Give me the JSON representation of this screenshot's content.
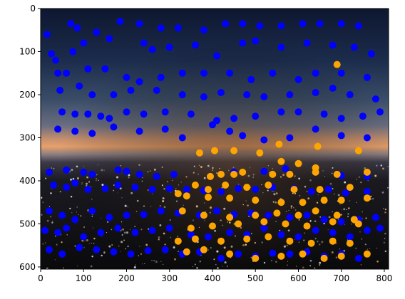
{
  "chart_data": {
    "type": "scatter",
    "background": "night city skyline photograph with sunset sky",
    "xlim": [
      0,
      810
    ],
    "ylim": [
      605,
      0
    ],
    "y_inverted": true,
    "grid": false,
    "x_ticks": [
      0,
      100,
      200,
      300,
      400,
      500,
      600,
      700,
      800
    ],
    "y_ticks": [
      0,
      100,
      200,
      300,
      400,
      500,
      600
    ],
    "series": [
      {
        "color": "#0000ff",
        "points": [
          [
            15,
            60
          ],
          [
            70,
            35
          ],
          [
            85,
            45
          ],
          [
            130,
            55
          ],
          [
            185,
            30
          ],
          [
            230,
            35
          ],
          [
            280,
            45
          ],
          [
            320,
            45
          ],
          [
            380,
            50
          ],
          [
            430,
            35
          ],
          [
            470,
            35
          ],
          [
            510,
            40
          ],
          [
            560,
            40
          ],
          [
            610,
            35
          ],
          [
            650,
            35
          ],
          [
            700,
            35
          ],
          [
            740,
            40
          ],
          [
            25,
            105
          ],
          [
            35,
            120
          ],
          [
            75,
            100
          ],
          [
            100,
            80
          ],
          [
            160,
            70
          ],
          [
            240,
            80
          ],
          [
            260,
            95
          ],
          [
            300,
            90
          ],
          [
            360,
            85
          ],
          [
            410,
            110
          ],
          [
            470,
            80
          ],
          [
            500,
            75
          ],
          [
            560,
            90
          ],
          [
            620,
            80
          ],
          [
            680,
            85
          ],
          [
            730,
            90
          ],
          [
            770,
            105
          ],
          [
            40,
            150
          ],
          [
            60,
            150
          ],
          [
            110,
            140
          ],
          [
            150,
            140
          ],
          [
            200,
            160
          ],
          [
            230,
            170
          ],
          [
            280,
            160
          ],
          [
            330,
            150
          ],
          [
            380,
            150
          ],
          [
            440,
            150
          ],
          [
            490,
            165
          ],
          [
            540,
            150
          ],
          [
            600,
            165
          ],
          [
            640,
            150
          ],
          [
            700,
            150
          ],
          [
            760,
            160
          ],
          [
            45,
            190
          ],
          [
            90,
            180
          ],
          [
            120,
            200
          ],
          [
            170,
            200
          ],
          [
            210,
            190
          ],
          [
            270,
            190
          ],
          [
            330,
            200
          ],
          [
            380,
            205
          ],
          [
            420,
            195
          ],
          [
            480,
            200
          ],
          [
            520,
            205
          ],
          [
            580,
            200
          ],
          [
            640,
            195
          ],
          [
            680,
            185
          ],
          [
            720,
            200
          ],
          [
            780,
            210
          ],
          [
            50,
            240
          ],
          [
            80,
            245
          ],
          [
            110,
            245
          ],
          [
            140,
            250
          ],
          [
            160,
            255
          ],
          [
            200,
            240
          ],
          [
            240,
            245
          ],
          [
            290,
            240
          ],
          [
            350,
            245
          ],
          [
            410,
            260
          ],
          [
            450,
            255
          ],
          [
            500,
            250
          ],
          [
            560,
            240
          ],
          [
            600,
            240
          ],
          [
            660,
            245
          ],
          [
            700,
            255
          ],
          [
            750,
            250
          ],
          [
            790,
            240
          ],
          [
            40,
            280
          ],
          [
            80,
            285
          ],
          [
            120,
            290
          ],
          [
            170,
            275
          ],
          [
            230,
            285
          ],
          [
            290,
            280
          ],
          [
            330,
            300
          ],
          [
            400,
            270
          ],
          [
            440,
            285
          ],
          [
            470,
            295
          ],
          [
            520,
            305
          ],
          [
            580,
            300
          ],
          [
            640,
            280
          ],
          [
            700,
            295
          ],
          [
            760,
            300
          ],
          [
            20,
            380
          ],
          [
            60,
            375
          ],
          [
            100,
            380
          ],
          [
            120,
            385
          ],
          [
            180,
            375
          ],
          [
            200,
            378
          ],
          [
            230,
            385
          ],
          [
            270,
            390
          ],
          [
            310,
            385
          ],
          [
            450,
            380
          ],
          [
            520,
            378
          ],
          [
            570,
            372
          ],
          [
            640,
            380
          ],
          [
            700,
            388
          ],
          [
            760,
            390
          ],
          [
            30,
            410
          ],
          [
            60,
            415
          ],
          [
            80,
            405
          ],
          [
            110,
            420
          ],
          [
            150,
            418
          ],
          [
            180,
            410
          ],
          [
            220,
            415
          ],
          [
            260,
            420
          ],
          [
            300,
            418
          ],
          [
            340,
            420
          ],
          [
            380,
            422
          ],
          [
            420,
            425
          ],
          [
            460,
            418
          ],
          [
            500,
            420
          ],
          [
            540,
            415
          ],
          [
            590,
            418
          ],
          [
            630,
            425
          ],
          [
            670,
            420
          ],
          [
            710,
            428
          ],
          [
            760,
            425
          ],
          [
            20,
            470
          ],
          [
            50,
            480
          ],
          [
            80,
            490
          ],
          [
            120,
            470
          ],
          [
            160,
            485
          ],
          [
            200,
            480
          ],
          [
            240,
            478
          ],
          [
            280,
            470
          ],
          [
            320,
            475
          ],
          [
            370,
            480
          ],
          [
            410,
            470
          ],
          [
            450,
            478
          ],
          [
            490,
            475
          ],
          [
            530,
            480
          ],
          [
            580,
            485
          ],
          [
            620,
            480
          ],
          [
            660,
            490
          ],
          [
            700,
            495
          ],
          [
            740,
            490
          ],
          [
            780,
            485
          ],
          [
            10,
            515
          ],
          [
            40,
            520
          ],
          [
            60,
            510
          ],
          [
            100,
            530
          ],
          [
            140,
            520
          ],
          [
            180,
            510
          ],
          [
            220,
            520
          ],
          [
            260,
            515
          ],
          [
            300,
            510
          ],
          [
            350,
            525
          ],
          [
            390,
            530
          ],
          [
            440,
            520
          ],
          [
            480,
            525
          ],
          [
            520,
            510
          ],
          [
            560,
            525
          ],
          [
            600,
            530
          ],
          [
            640,
            515
          ],
          [
            680,
            520
          ],
          [
            720,
            530
          ],
          [
            760,
            515
          ],
          [
            790,
            510
          ],
          [
            20,
            560
          ],
          [
            50,
            570
          ],
          [
            90,
            555
          ],
          [
            130,
            560
          ],
          [
            170,
            565
          ],
          [
            210,
            570
          ],
          [
            250,
            562
          ],
          [
            290,
            560
          ],
          [
            330,
            570
          ],
          [
            370,
            565
          ],
          [
            420,
            580
          ],
          [
            460,
            570
          ],
          [
            500,
            575
          ],
          [
            540,
            568
          ],
          [
            580,
            570
          ],
          [
            620,
            565
          ],
          [
            660,
            575
          ],
          [
            700,
            570
          ],
          [
            740,
            580
          ]
        ]
      },
      {
        "color": "#ffa500",
        "points": [
          [
            690,
            130
          ],
          [
            370,
            335
          ],
          [
            405,
            330
          ],
          [
            450,
            330
          ],
          [
            510,
            335
          ],
          [
            555,
            315
          ],
          [
            645,
            320
          ],
          [
            740,
            330
          ],
          [
            560,
            355
          ],
          [
            600,
            360
          ],
          [
            640,
            370
          ],
          [
            395,
            390
          ],
          [
            420,
            385
          ],
          [
            450,
            385
          ],
          [
            470,
            380
          ],
          [
            540,
            385
          ],
          [
            580,
            385
          ],
          [
            640,
            380
          ],
          [
            690,
            385
          ],
          [
            760,
            380
          ],
          [
            360,
            410
          ],
          [
            390,
            420
          ],
          [
            430,
            410
          ],
          [
            480,
            415
          ],
          [
            530,
            410
          ],
          [
            590,
            420
          ],
          [
            650,
            420
          ],
          [
            720,
            415
          ],
          [
            320,
            430
          ],
          [
            340,
            435
          ],
          [
            390,
            438
          ],
          [
            440,
            440
          ],
          [
            500,
            445
          ],
          [
            560,
            450
          ],
          [
            610,
            450
          ],
          [
            660,
            445
          ],
          [
            700,
            445
          ],
          [
            760,
            440
          ],
          [
            330,
            470
          ],
          [
            380,
            480
          ],
          [
            440,
            485
          ],
          [
            500,
            480
          ],
          [
            550,
            475
          ],
          [
            600,
            480
          ],
          [
            640,
            470
          ],
          [
            690,
            480
          ],
          [
            730,
            490
          ],
          [
            350,
            510
          ],
          [
            400,
            505
          ],
          [
            460,
            500
          ],
          [
            520,
            495
          ],
          [
            570,
            500
          ],
          [
            620,
            505
          ],
          [
            680,
            495
          ],
          [
            740,
            500
          ],
          [
            320,
            540
          ],
          [
            360,
            535
          ],
          [
            420,
            540
          ],
          [
            480,
            535
          ],
          [
            530,
            530
          ],
          [
            580,
            540
          ],
          [
            630,
            545
          ],
          [
            680,
            540
          ],
          [
            720,
            545
          ],
          [
            340,
            565
          ],
          [
            380,
            560
          ],
          [
            440,
            570
          ],
          [
            500,
            580
          ],
          [
            560,
            575
          ],
          [
            610,
            570
          ],
          [
            660,
            580
          ],
          [
            700,
            575
          ],
          [
            760,
            570
          ]
        ]
      }
    ]
  }
}
